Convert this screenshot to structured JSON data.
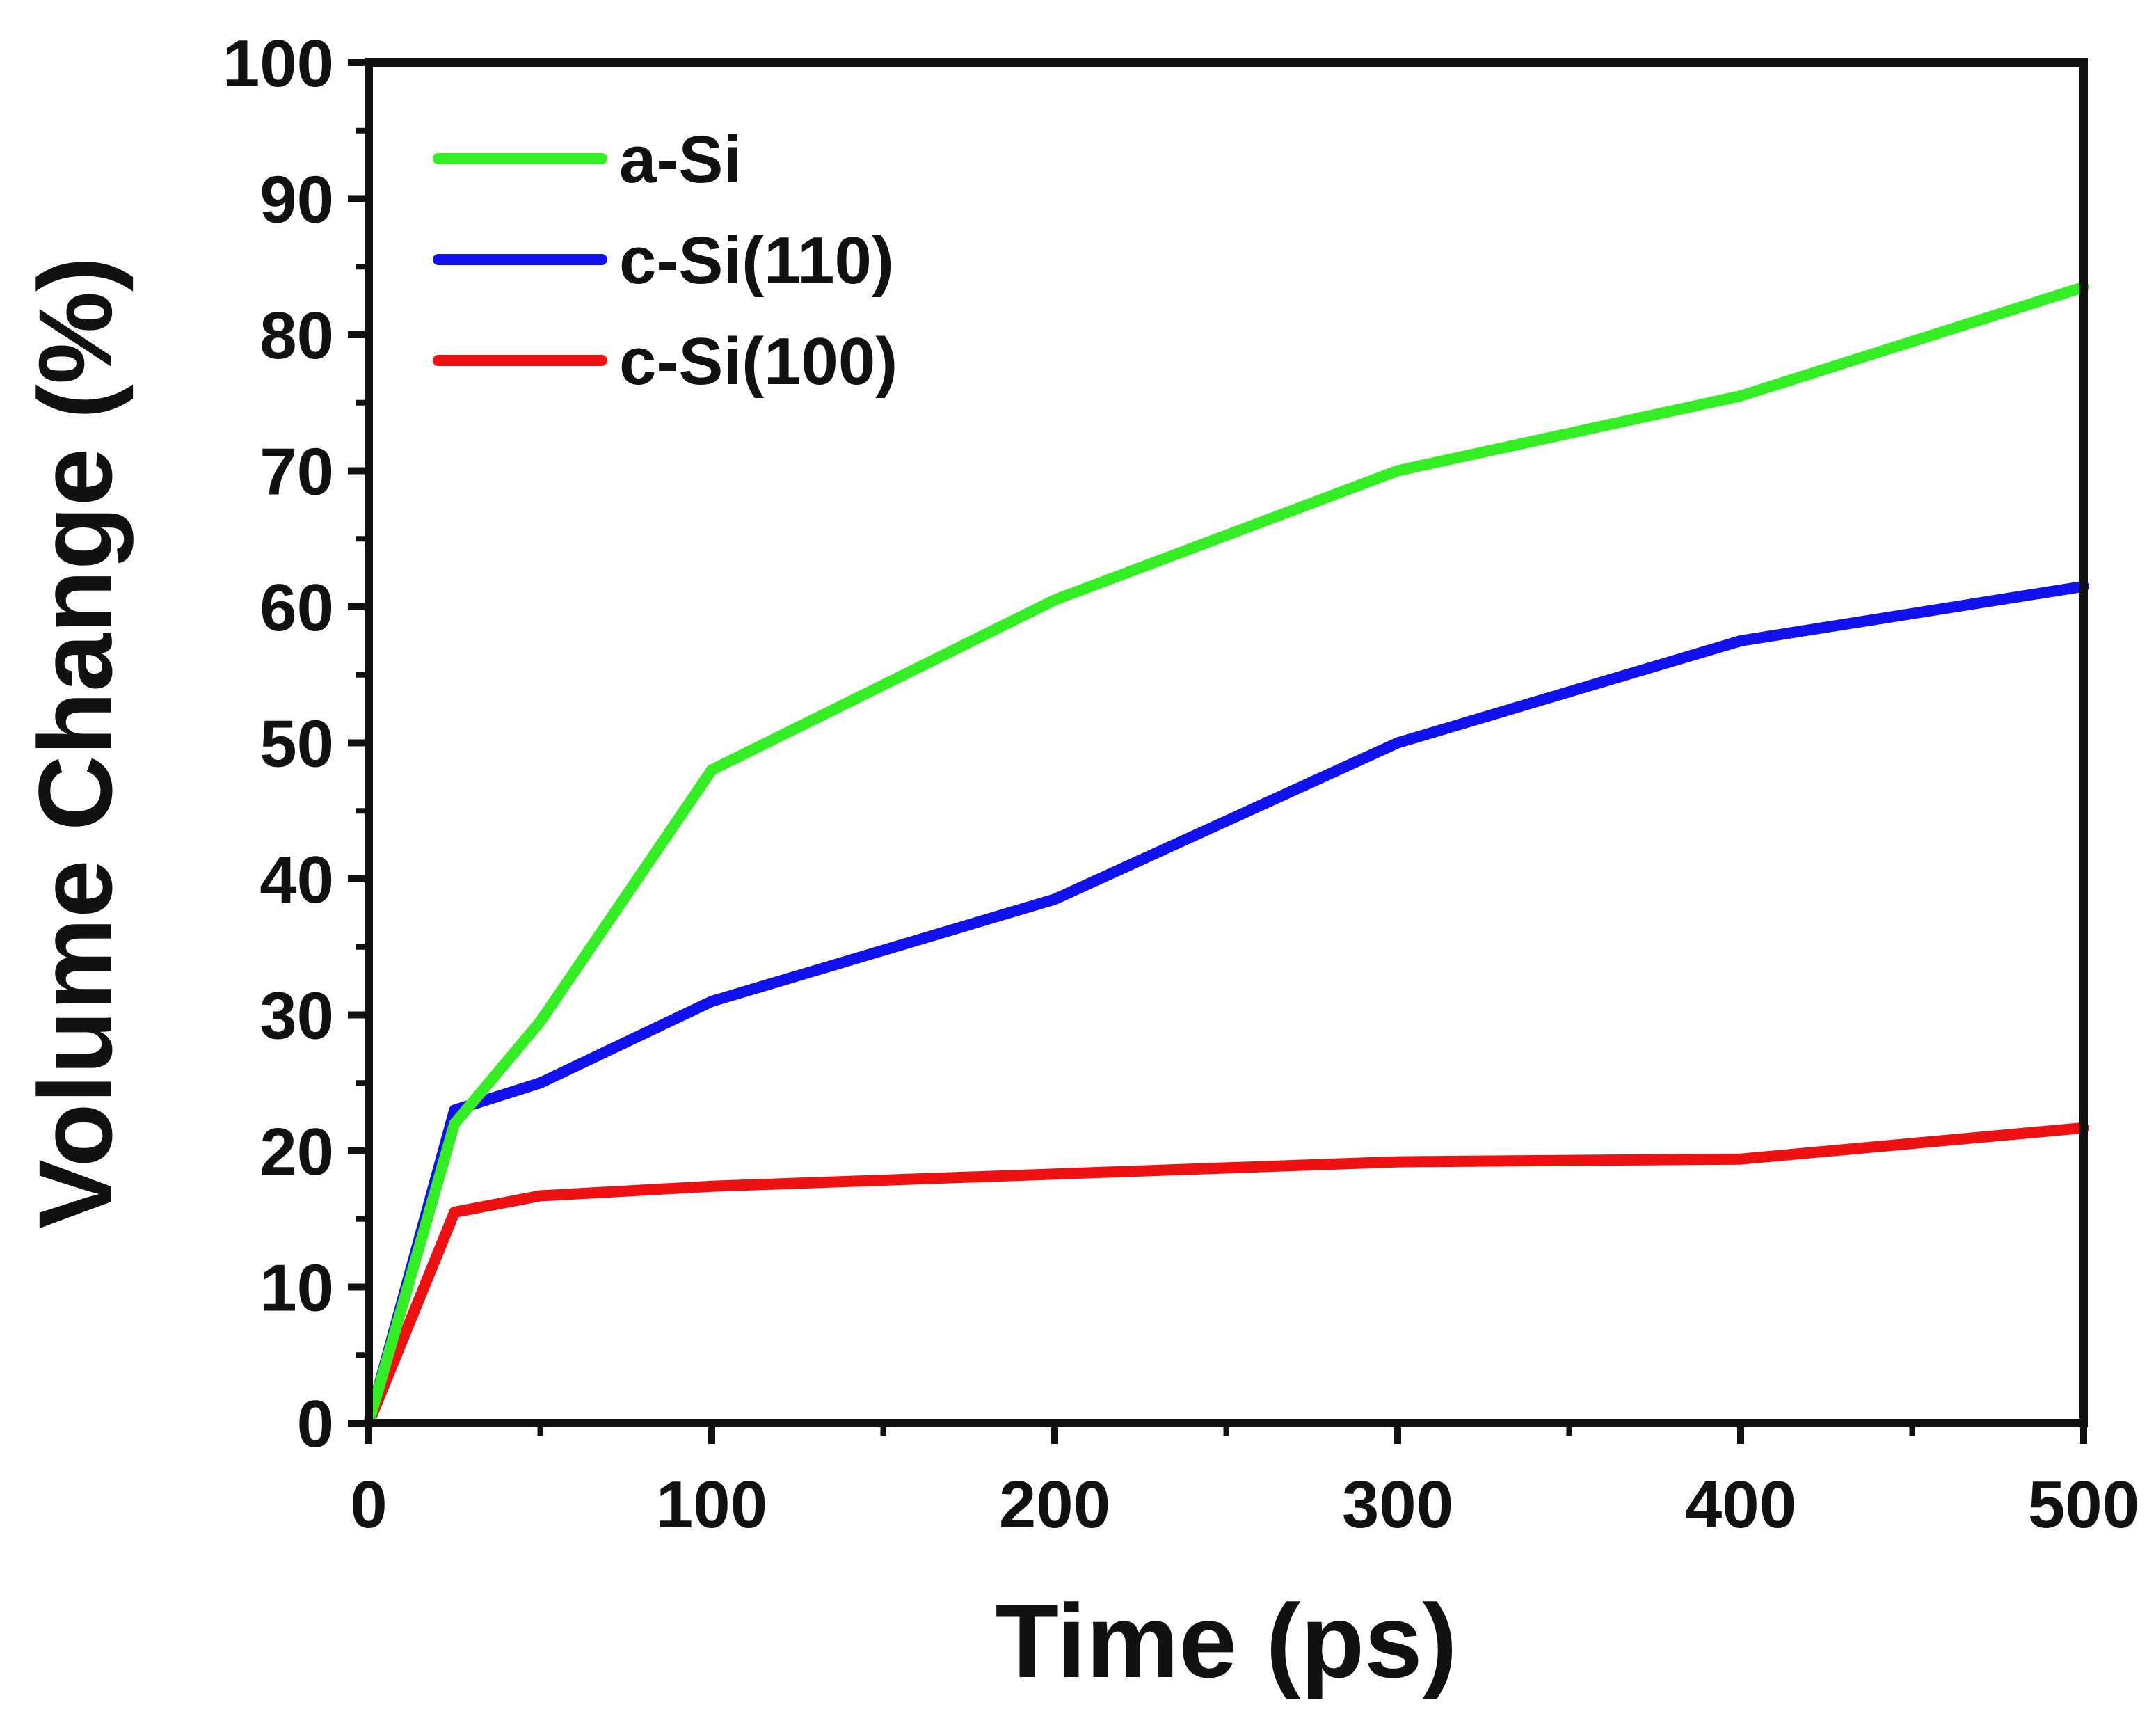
{
  "chart_data": {
    "type": "line",
    "title": "",
    "xlabel": "Time (ps)",
    "ylabel": "Volume Change (%)",
    "xlim": [
      0,
      500
    ],
    "ylim": [
      0,
      100
    ],
    "x_ticks": [
      0,
      100,
      200,
      300,
      400,
      500
    ],
    "y_ticks": [
      0,
      10,
      20,
      30,
      40,
      50,
      60,
      70,
      80,
      90,
      100
    ],
    "x_tick_labels": [
      "0",
      "100",
      "200",
      "300",
      "400",
      "500"
    ],
    "y_tick_labels": [
      "0",
      "10",
      "20",
      "30",
      "40",
      "50",
      "60",
      "70",
      "80",
      "90",
      "100"
    ],
    "grid": false,
    "legend_position": "top-left",
    "series": [
      {
        "name": "a-Si",
        "color": "#33ee22",
        "x": [
          0,
          25,
          50,
          100,
          200,
          300,
          400,
          500
        ],
        "y": [
          0,
          22,
          29.5,
          48,
          60.5,
          70,
          75.5,
          83.5
        ]
      },
      {
        "name": "c-Si(110)",
        "color": "#1111ee",
        "x": [
          0,
          25,
          50,
          100,
          200,
          300,
          400,
          500
        ],
        "y": [
          0,
          23,
          25,
          31,
          38.5,
          50,
          57.5,
          61.5
        ]
      },
      {
        "name": "c-Si(100)",
        "color": "#ee1111",
        "x": [
          0,
          25,
          50,
          100,
          200,
          300,
          400,
          500
        ],
        "y": [
          0,
          15.5,
          16.7,
          17.4,
          18.3,
          19.2,
          19.4,
          21.7
        ]
      }
    ]
  }
}
